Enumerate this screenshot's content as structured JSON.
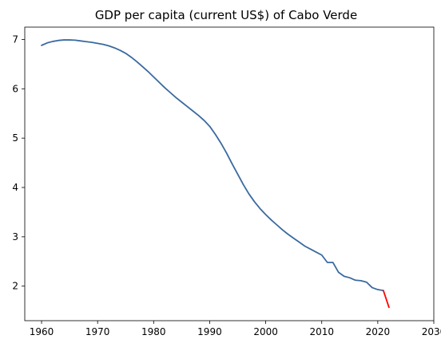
{
  "chart_data": {
    "type": "line",
    "title": "GDP per capita (current US$) of Cabo Verde",
    "xlabel": "",
    "ylabel": "",
    "xlim": [
      1957,
      2030
    ],
    "ylim": [
      1.3,
      7.25
    ],
    "xticks": [
      1960,
      1970,
      1980,
      1990,
      2000,
      2010,
      2020,
      2030
    ],
    "yticks": [
      2,
      3,
      4,
      5,
      6,
      7
    ],
    "grid": false,
    "series": [
      {
        "color": "#3a6aa0",
        "x": [
          1960,
          1961,
          1962,
          1963,
          1964,
          1965,
          1966,
          1967,
          1968,
          1969,
          1970,
          1971,
          1972,
          1973,
          1974,
          1975,
          1976,
          1977,
          1978,
          1979,
          1980,
          1981,
          1982,
          1983,
          1984,
          1985,
          1986,
          1987,
          1988,
          1989,
          1990,
          1991,
          1992,
          1993,
          1994,
          1995,
          1996,
          1997,
          1998,
          1999,
          2000,
          2001,
          2002,
          2003,
          2004,
          2005,
          2006,
          2007,
          2008,
          2009,
          2010,
          2011,
          2012,
          2013,
          2014,
          2015,
          2016,
          2017,
          2018,
          2019,
          2020,
          2021
        ],
        "y": [
          6.88,
          6.93,
          6.96,
          6.98,
          6.99,
          6.99,
          6.985,
          6.97,
          6.955,
          6.94,
          6.92,
          6.9,
          6.87,
          6.83,
          6.78,
          6.72,
          6.64,
          6.55,
          6.45,
          6.35,
          6.24,
          6.13,
          6.02,
          5.92,
          5.82,
          5.73,
          5.64,
          5.55,
          5.46,
          5.36,
          5.24,
          5.08,
          4.9,
          4.7,
          4.48,
          4.27,
          4.06,
          3.87,
          3.71,
          3.57,
          3.45,
          3.34,
          3.24,
          3.14,
          3.05,
          2.97,
          2.89,
          2.81,
          2.75,
          2.69,
          2.63,
          2.48,
          2.48,
          2.28,
          2.2,
          2.17,
          2.12,
          2.11,
          2.08,
          1.97,
          1.93,
          1.91
        ]
      },
      {
        "color": "#ff0000",
        "x": [
          2021,
          2022
        ],
        "y": [
          1.91,
          1.57
        ]
      }
    ]
  }
}
